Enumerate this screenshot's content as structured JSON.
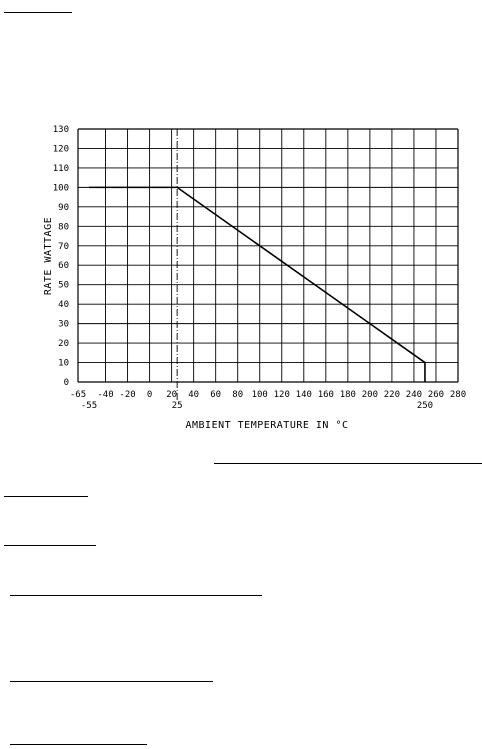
{
  "chart_data": {
    "type": "line",
    "title": "",
    "xlabel": "AMBIENT TEMPERATURE IN °C",
    "ylabel": "RATE WATTAGE",
    "xlim": [
      -65,
      280
    ],
    "ylim": [
      0,
      130
    ],
    "x_ticks": [
      -65,
      -40,
      -20,
      0,
      20,
      40,
      60,
      80,
      100,
      120,
      140,
      160,
      180,
      200,
      220,
      240,
      260,
      280
    ],
    "y_ticks": [
      0,
      10,
      20,
      30,
      40,
      50,
      60,
      70,
      80,
      90,
      100,
      110,
      120,
      130
    ],
    "x_tick_labels": [
      "-65",
      "-40",
      "-20",
      "0",
      "20",
      "40",
      "60",
      "80",
      "100",
      "120",
      "140",
      "160",
      "180",
      "200",
      "220",
      "240",
      "260",
      "280"
    ],
    "y_tick_labels": [
      "0",
      "10",
      "20",
      "30",
      "40",
      "50",
      "60",
      "70",
      "80",
      "90",
      "100",
      "110",
      "120",
      "130"
    ],
    "x_marker_labels": [
      {
        "value": -55,
        "label": "-55"
      },
      {
        "value": 25,
        "label": "25"
      },
      {
        "value": 250,
        "label": "250"
      }
    ],
    "reference_line_x": 25,
    "grid": true,
    "series": [
      {
        "x": [
          -55,
          25,
          250,
          250
        ],
        "y": [
          100,
          100,
          10,
          0
        ]
      }
    ]
  }
}
